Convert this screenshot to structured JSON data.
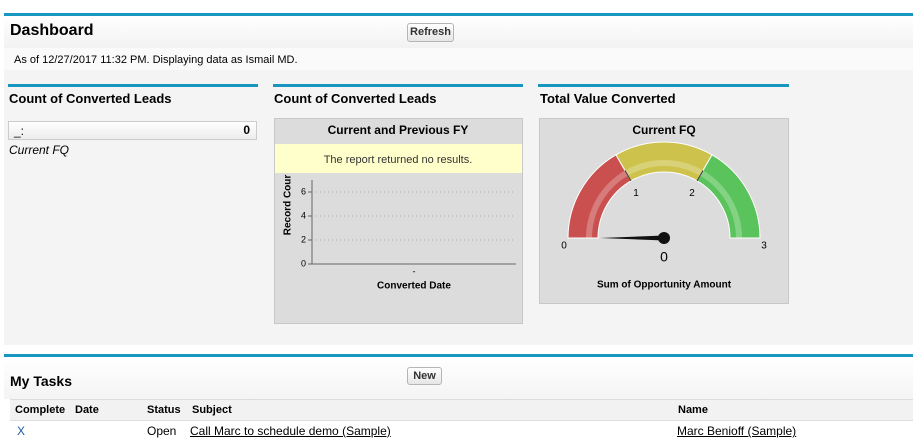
{
  "header": {
    "title": "Dashboard",
    "button": "Refresh",
    "status": "As of 12/27/2017 11:32 PM. Displaying data as Ismail MD."
  },
  "components": [
    {
      "title": "Count of Converted Leads",
      "metric_label": "_:",
      "metric_value": 0,
      "footer": "Current FQ"
    },
    {
      "title": "Count of Converted Leads",
      "chart": {
        "type": "bar",
        "title": "Current and Previous FY",
        "message": "The report returned no results.",
        "y_label": "Record Cour",
        "x_label": "Converted Date",
        "categories": [
          "-"
        ],
        "ylim": [
          0,
          7
        ],
        "yticks": [
          0,
          2,
          4,
          6
        ],
        "grid": true
      }
    },
    {
      "title": "Total Value Converted",
      "chart": {
        "type": "gauge",
        "title": "Current FQ",
        "value": 0,
        "ticks": [
          0,
          1,
          2,
          3
        ],
        "x_label": "Sum of Opportunity Amount",
        "colors": [
          "#c9504f",
          "#cdc24b",
          "#5bc35b"
        ]
      }
    }
  ],
  "tasks": {
    "title": "My Tasks",
    "button": "New",
    "columns": [
      "Complete",
      "Date",
      "Status",
      "Subject",
      "Name"
    ],
    "rows": [
      {
        "complete": "X",
        "status": "Open",
        "subject": "Call Marc to schedule demo (Sample)",
        "name": "Marc Benioff (Sample)"
      }
    ]
  }
}
